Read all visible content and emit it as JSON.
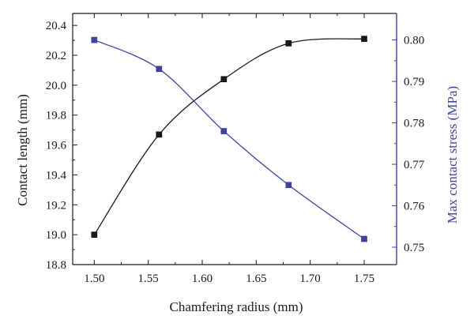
{
  "chart_data": {
    "type": "line",
    "xlabel": "Chamfering radius (mm)",
    "ylabel_left": "Contact length (mm)",
    "ylabel_right": "Max contact stress (MPa)",
    "xlim": [
      1.48,
      1.78
    ],
    "ylim_left": [
      18.8,
      20.48
    ],
    "ylim_right": [
      0.7458,
      0.8064
    ],
    "x_ticks": [
      1.5,
      1.55,
      1.6,
      1.65,
      1.7,
      1.75
    ],
    "x_tick_labels": [
      "1.50",
      "1.55",
      "1.60",
      "1.65",
      "1.70",
      "1.75"
    ],
    "y_left_ticks": [
      18.8,
      19.0,
      19.2,
      19.4,
      19.6,
      19.8,
      20.0,
      20.2,
      20.4
    ],
    "y_left_tick_labels": [
      "18.8",
      "19.0",
      "19.2",
      "19.4",
      "19.6",
      "19.8",
      "20.0",
      "20.2",
      "20.4"
    ],
    "y_right_ticks": [
      0.75,
      0.76,
      0.77,
      0.78,
      0.79,
      0.8
    ],
    "y_right_tick_labels": [
      "0.75",
      "0.76",
      "0.77",
      "0.78",
      "0.79",
      "0.80"
    ],
    "grid": false,
    "series": [
      {
        "axis": "left",
        "color": "#1a1a1a",
        "marker": "square",
        "smooth": true,
        "x": [
          1.5,
          1.56,
          1.62,
          1.68,
          1.75
        ],
        "y": [
          19.0,
          19.67,
          20.04,
          20.28,
          20.31
        ]
      },
      {
        "axis": "right",
        "color": "#3f44a0",
        "marker": "square",
        "smooth": true,
        "x": [
          1.5,
          1.56,
          1.62,
          1.68,
          1.75
        ],
        "y": [
          0.8,
          0.793,
          0.778,
          0.765,
          0.752
        ]
      }
    ]
  },
  "colors": {
    "left_axis": "#1a1a1a",
    "right_axis": "#3f44a0"
  }
}
